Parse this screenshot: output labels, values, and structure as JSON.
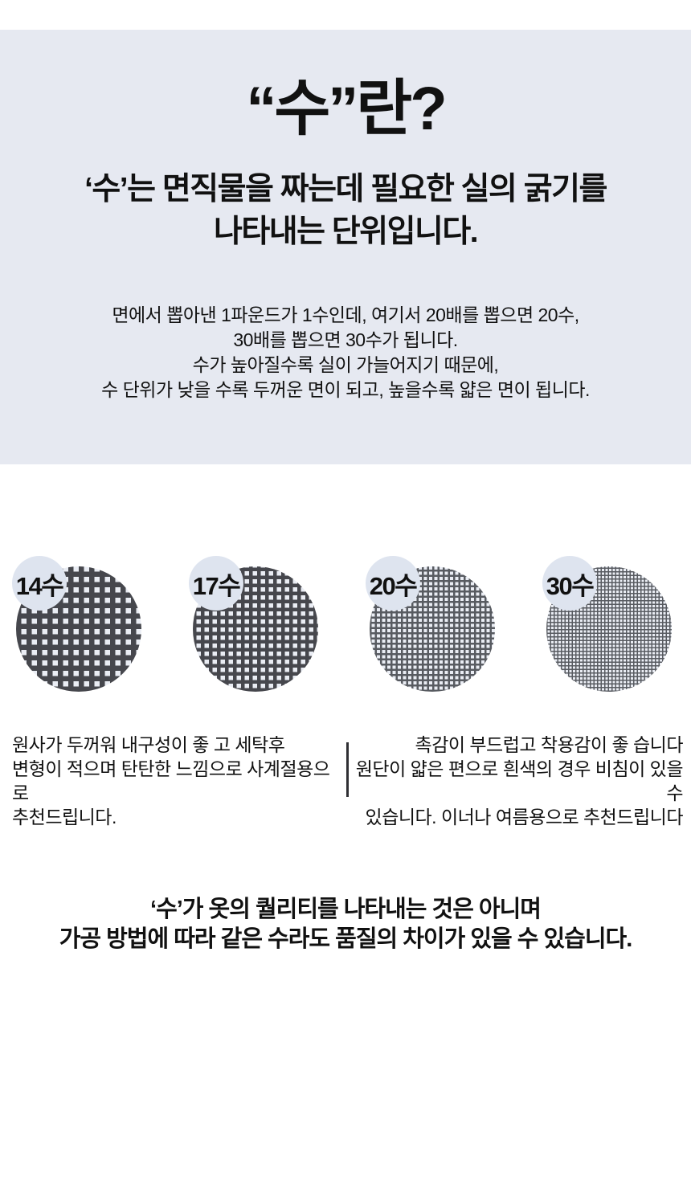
{
  "hero": {
    "title": "“수”란?",
    "subtitle_lines": [
      "‘수’는 면직물을 짜는데 필요한 실의 굵기를",
      "나타내는 단위입니다."
    ],
    "body_lines": [
      "면에서 뽑아낸 1파운드가 1수인데, 여기서 20배를 뽑으면 20수,",
      "30배를 뽑으면 30수가 됩니다.",
      "수가 높아질수록 실이 가늘어지기 때문에,",
      "수 단위가 낮을 수록 두꺼운 면이 되고, 높을수록 얇은 면이 됩니다."
    ]
  },
  "swatches": {
    "items": [
      {
        "label": "14수",
        "mesh": "coarse-14"
      },
      {
        "label": "17수",
        "mesh": "coarse-17"
      },
      {
        "label": "20수",
        "mesh": "fine-20"
      },
      {
        "label": "30수",
        "mesh": "fine-30"
      }
    ]
  },
  "notes": {
    "left_lines": [
      "원사가 두꺼워 내구성이 좋 고 세탁후",
      "변형이 적으며 탄탄한 느낌으로 사계절용으로",
      "추천드립니다."
    ],
    "right_lines": [
      "촉감이 부드럽고 착용감이 좋 습니다",
      "원단이 얇은 편으로 흰색의 경우 비침이 있을 수",
      "있습니다. 이너나 여름용으로 추천드립니다"
    ]
  },
  "footer": {
    "lines": [
      "‘수’가 옷의 퀄리티를 나타내는 것은 아니며",
      "가공 방법에 따라 같은 수라도 품질의 차이가 있을 수 있습니다."
    ]
  },
  "colors": {
    "header_bg": "#e6e9f1",
    "badge_bg": "#dee4ef",
    "mesh_bg": "#eaedf4",
    "mesh_line_coarse": "#46474d",
    "mesh_line_fine": "#585b61",
    "text": "#111111",
    "divider": "#2f2f33"
  }
}
